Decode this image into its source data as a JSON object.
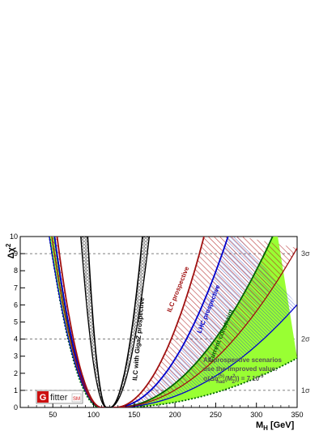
{
  "chart_data": {
    "type": "line",
    "ylabel_main": "Δχ",
    "ylabel_sup": "2",
    "xlabel_main": "M",
    "xlabel_sub": "H",
    "xlabel_unit": "[GeV]",
    "xlim": [
      10,
      350
    ],
    "ylim": [
      0,
      10
    ],
    "x_ticks": [
      50,
      100,
      150,
      200,
      250,
      300,
      350
    ],
    "y_ticks": [
      0,
      1,
      2,
      3,
      4,
      5,
      6,
      7,
      8,
      9,
      10
    ],
    "sigma_lines": [
      {
        "y": 1,
        "label": "1σ"
      },
      {
        "y": 4,
        "label": "2σ"
      },
      {
        "y": 9,
        "label": "3σ"
      }
    ],
    "series": [
      {
        "name": "Current constraint",
        "color": "#006400",
        "band_color": "#99ff33",
        "center": 118,
        "inner_half": 10,
        "left_w9": 53,
        "right_w9": 182,
        "band_right_w9": 210
      },
      {
        "name": "LHC prospective",
        "color": "#0000cc",
        "band_color": "#b8c8ff",
        "center": 118,
        "inner_half": 8,
        "left_w9": 55,
        "right_w9": 132,
        "band_right_w9": 142
      },
      {
        "name": "ILC prospective",
        "color": "#a01010",
        "band_color": "#c03030",
        "center": 118,
        "inner_half": 8,
        "left_w9": 52,
        "right_w9": 104,
        "band_right_w9": 116
      },
      {
        "name": "ILC with GigaZ prospective",
        "color": "#000000",
        "band_color": "#a8a8a8",
        "center": 118,
        "inner_half": 2,
        "left_w9": 22,
        "right_w9": 38,
        "band_right_w9": 8
      }
    ],
    "annotation": {
      "line1": "All prospective scenarios",
      "line2": "use the improved value:",
      "line3": "σ(Δα",
      "line3_sup": "(5)",
      "line3_sub": "had",
      "line3_rest": "(M",
      "line3_sup2": "2",
      "line3_sub2": "Z",
      "line3_end": ")) = 7 10",
      "line3_exp": "-5"
    },
    "grid": "dashed horizontal lines at 1, 4, 9"
  },
  "logo": {
    "letter": "G",
    "word": "fitter",
    "badge": "SM"
  }
}
